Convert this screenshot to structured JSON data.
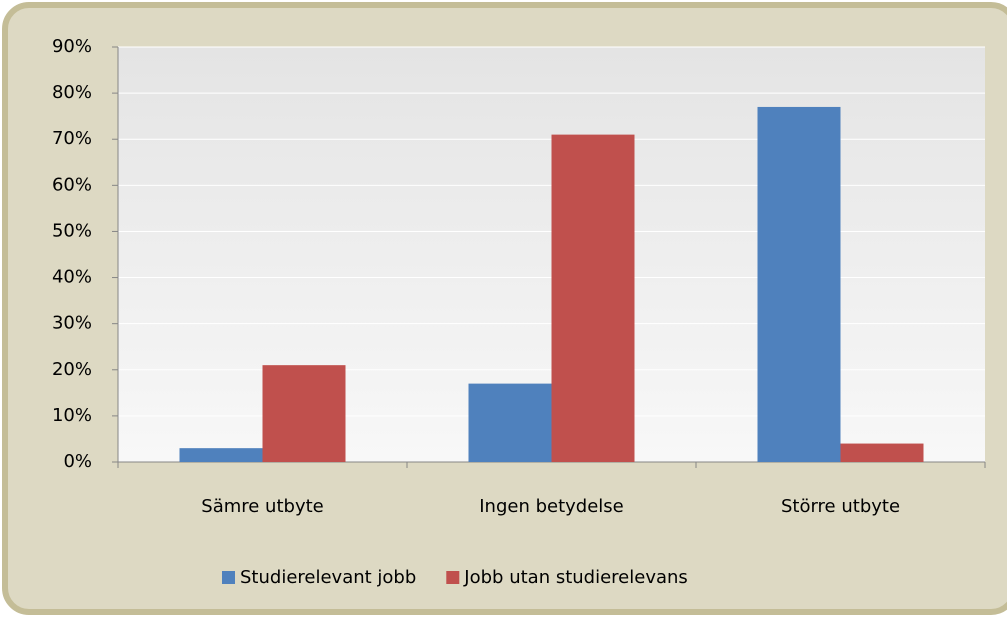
{
  "chart_data": {
    "type": "bar",
    "categories": [
      "Sämre utbyte",
      "Ingen betydelse",
      "Större utbyte"
    ],
    "series": [
      {
        "name": "Studierelevant jobb",
        "color": "#4f81bd",
        "values": [
          3,
          17,
          77
        ]
      },
      {
        "name": "Jobb utan studierelevans",
        "color": "#c0504d",
        "values": [
          21,
          71,
          4
        ]
      }
    ],
    "ylim": [
      0,
      90
    ],
    "yticks": [
      {
        "value": 0,
        "label": "0%"
      },
      {
        "value": 10,
        "label": "10%"
      },
      {
        "value": 20,
        "label": "20%"
      },
      {
        "value": 30,
        "label": "30%"
      },
      {
        "value": 40,
        "label": "40%"
      },
      {
        "value": 50,
        "label": "50%"
      },
      {
        "value": 60,
        "label": "60%"
      },
      {
        "value": 70,
        "label": "70%"
      },
      {
        "value": 80,
        "label": "80%"
      },
      {
        "value": 90,
        "label": "90%"
      }
    ],
    "grid": true,
    "legend": "bottom"
  }
}
